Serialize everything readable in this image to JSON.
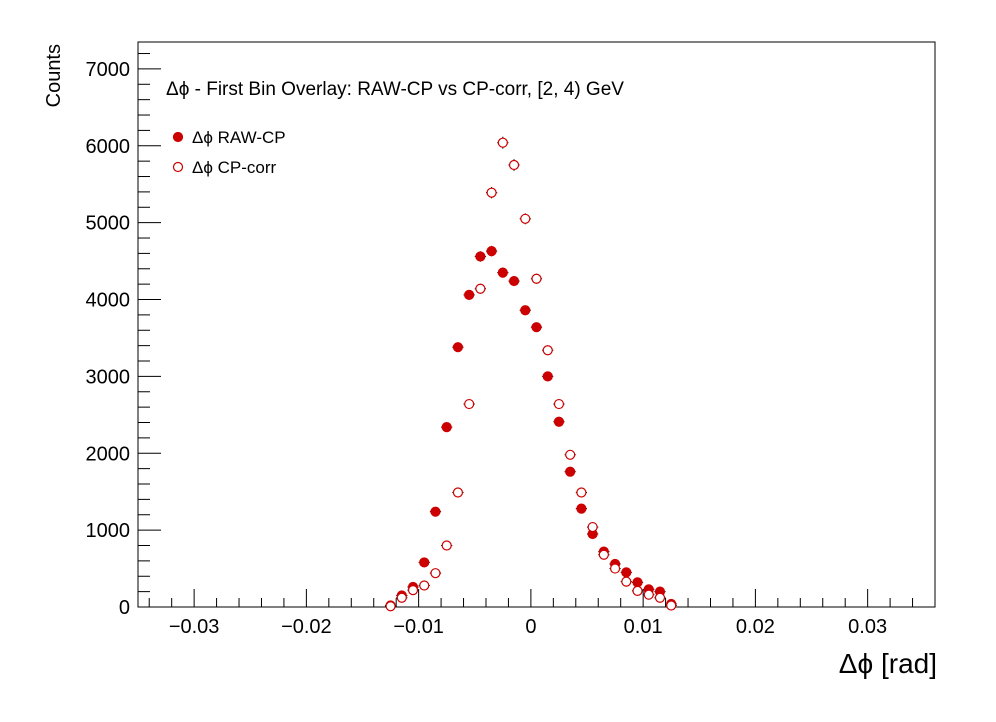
{
  "chart_data": {
    "type": "scatter",
    "title": "Δϕ  -  First Bin Overlay: RAW-CP vs CP-corr, [2, 4) GeV",
    "xlabel": "Δϕ  [rad]",
    "ylabel": "Counts",
    "xlim": [
      -0.035,
      0.036
    ],
    "ylim": [
      0,
      7350
    ],
    "x_ticks": [
      -0.03,
      -0.02,
      -0.01,
      0,
      0.01,
      0.02,
      0.03
    ],
    "x_tick_labels": [
      "−0.03",
      "−0.02",
      "−0.01",
      "0",
      "0.01",
      "0.02",
      "0.03"
    ],
    "y_ticks": [
      0,
      1000,
      2000,
      3000,
      4000,
      5000,
      6000,
      7000
    ],
    "y_tick_labels": [
      "0",
      "1000",
      "2000",
      "3000",
      "4000",
      "5000",
      "6000",
      "7000"
    ],
    "grid": false,
    "legend_position": "top-left",
    "x": [
      -0.0125,
      -0.0115,
      -0.0105,
      -0.0095,
      -0.0085,
      -0.0075,
      -0.0065,
      -0.0055,
      -0.0045,
      -0.0035,
      -0.0025,
      -0.0015,
      -0.0005,
      0.0005,
      0.0015,
      0.0025,
      0.0035,
      0.0045,
      0.0055,
      0.0065,
      0.0075,
      0.0085,
      0.0095,
      0.0105,
      0.0115,
      0.0125
    ],
    "series": [
      {
        "name": "Δϕ RAW-CP",
        "marker": "filled-circle",
        "color": "#cc0000",
        "values": [
          20,
          150,
          260,
          580,
          1240,
          2340,
          3380,
          4060,
          4560,
          4630,
          4350,
          4240,
          3860,
          3640,
          3000,
          2410,
          1760,
          1280,
          950,
          720,
          560,
          450,
          320,
          230,
          200,
          40
        ]
      },
      {
        "name": "Δϕ CP-corr",
        "marker": "open-circle",
        "color": "#cc0000",
        "values": [
          10,
          120,
          220,
          280,
          440,
          800,
          1490,
          2640,
          4140,
          5390,
          6040,
          5750,
          5050,
          4270,
          3340,
          2640,
          1980,
          1490,
          1040,
          680,
          500,
          330,
          210,
          160,
          120,
          20
        ]
      }
    ]
  }
}
